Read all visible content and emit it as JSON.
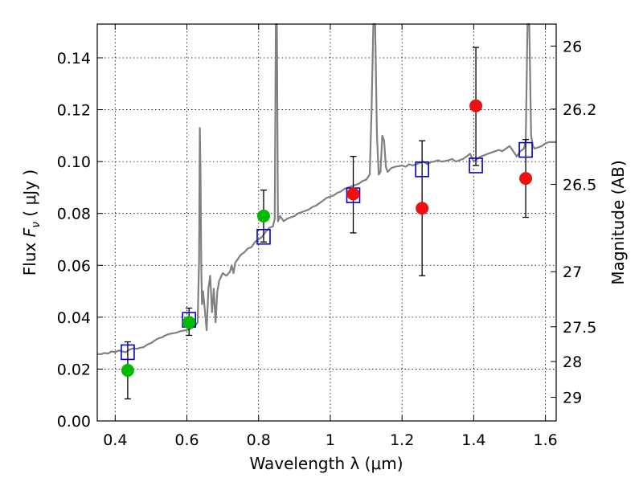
{
  "chart_data": {
    "type": "scatter",
    "title": "",
    "xlabel": "Wavelength  λ (μm)",
    "ylabel": "Flux  F_ν  ( μJy )",
    "ylabel_parts": {
      "prefix": "Flux  ",
      "symbol": "F",
      "subscript": "ν",
      "suffix": "  ( μJy )"
    },
    "y2label": "Magnitude (AB)",
    "xlim": [
      0.35,
      1.63
    ],
    "ylim": [
      0.0,
      0.153
    ],
    "grid": true,
    "x_ticks": [
      0.4,
      0.6,
      0.8,
      1.0,
      1.2,
      1.4,
      1.6
    ],
    "x_tick_labels": [
      "0.4",
      "0.6",
      "0.8",
      "1",
      "1.2",
      "1.4",
      "1.6"
    ],
    "y_ticks": [
      0.0,
      0.02,
      0.04,
      0.06,
      0.08,
      0.1,
      0.12,
      0.14
    ],
    "y_tick_labels": [
      "0.00",
      "0.02",
      "0.04",
      "0.06",
      "0.08",
      "0.10",
      "0.12",
      "0.14"
    ],
    "y2_ticks": [
      26,
      26.2,
      26.5,
      27,
      27.5,
      28,
      29
    ],
    "y2_tick_labels": [
      "26",
      "26.2",
      "26.5",
      "27",
      "27.5",
      "28",
      "29"
    ],
    "series": [
      {
        "name": "Model spectrum",
        "kind": "line",
        "color": "#808080",
        "x": [
          0.35,
          0.36,
          0.37,
          0.38,
          0.39,
          0.4,
          0.41,
          0.42,
          0.43,
          0.44,
          0.45,
          0.46,
          0.47,
          0.48,
          0.49,
          0.5,
          0.51,
          0.52,
          0.53,
          0.54,
          0.55,
          0.56,
          0.57,
          0.58,
          0.59,
          0.6,
          0.61,
          0.615,
          0.62,
          0.625,
          0.63,
          0.634,
          0.636,
          0.638,
          0.64,
          0.642,
          0.645,
          0.65,
          0.655,
          0.66,
          0.665,
          0.67,
          0.675,
          0.68,
          0.685,
          0.69,
          0.7,
          0.71,
          0.72,
          0.725,
          0.73,
          0.735,
          0.74,
          0.75,
          0.76,
          0.77,
          0.78,
          0.79,
          0.8,
          0.81,
          0.82,
          0.83,
          0.84,
          0.845,
          0.848,
          0.851,
          0.854,
          0.857,
          0.86,
          0.865,
          0.87,
          0.88,
          0.89,
          0.9,
          0.91,
          0.92,
          0.93,
          0.94,
          0.95,
          0.96,
          0.97,
          0.98,
          0.99,
          1.0,
          1.01,
          1.02,
          1.03,
          1.04,
          1.05,
          1.06,
          1.07,
          1.08,
          1.09,
          1.1,
          1.11,
          1.115,
          1.12,
          1.125,
          1.13,
          1.135,
          1.14,
          1.145,
          1.15,
          1.155,
          1.16,
          1.17,
          1.18,
          1.19,
          1.2,
          1.21,
          1.22,
          1.23,
          1.24,
          1.25,
          1.26,
          1.27,
          1.28,
          1.29,
          1.3,
          1.31,
          1.32,
          1.33,
          1.34,
          1.35,
          1.36,
          1.37,
          1.38,
          1.39,
          1.4,
          1.41,
          1.42,
          1.43,
          1.44,
          1.45,
          1.46,
          1.47,
          1.48,
          1.49,
          1.5,
          1.51,
          1.52,
          1.53,
          1.54,
          1.545,
          1.55,
          1.555,
          1.56,
          1.565,
          1.57,
          1.58,
          1.59,
          1.6,
          1.61,
          1.62,
          1.63
        ],
        "y": [
          0.0258,
          0.0257,
          0.0262,
          0.026,
          0.0268,
          0.0265,
          0.0272,
          0.0268,
          0.0265,
          0.0275,
          0.028,
          0.0278,
          0.0282,
          0.0285,
          0.0295,
          0.03,
          0.031,
          0.0318,
          0.0322,
          0.033,
          0.0335,
          0.0338,
          0.034,
          0.0345,
          0.0348,
          0.035,
          0.0355,
          0.036,
          0.0365,
          0.037,
          0.038,
          0.062,
          0.113,
          0.095,
          0.06,
          0.045,
          0.05,
          0.043,
          0.035,
          0.051,
          0.056,
          0.042,
          0.051,
          0.038,
          0.05,
          0.054,
          0.057,
          0.056,
          0.0575,
          0.06,
          0.057,
          0.061,
          0.062,
          0.064,
          0.065,
          0.0665,
          0.067,
          0.069,
          0.07,
          0.071,
          0.073,
          0.0745,
          0.075,
          0.078,
          0.153,
          0.153,
          0.077,
          0.078,
          0.079,
          0.078,
          0.077,
          0.078,
          0.0785,
          0.079,
          0.08,
          0.0805,
          0.081,
          0.0815,
          0.0825,
          0.083,
          0.084,
          0.085,
          0.086,
          0.0865,
          0.087,
          0.088,
          0.0885,
          0.0895,
          0.09,
          0.0905,
          0.091,
          0.0915,
          0.0925,
          0.093,
          0.095,
          0.12,
          0.153,
          0.153,
          0.11,
          0.095,
          0.096,
          0.11,
          0.108,
          0.098,
          0.096,
          0.0975,
          0.098,
          0.0982,
          0.0985,
          0.098,
          0.099,
          0.0985,
          0.099,
          0.0995,
          0.1,
          0.099,
          0.0998,
          0.1,
          0.1005,
          0.1,
          0.1002,
          0.1005,
          0.101,
          0.1,
          0.1005,
          0.101,
          0.102,
          0.103,
          0.1,
          0.101,
          0.102,
          0.1025,
          0.103,
          0.1035,
          0.104,
          0.1045,
          0.104,
          0.105,
          0.106,
          0.104,
          0.102,
          0.104,
          0.105,
          0.108,
          0.153,
          0.153,
          0.11,
          0.106,
          0.105,
          0.1055,
          0.106,
          0.107,
          0.1075,
          0.1075,
          0.1075
        ]
      },
      {
        "name": "Model photometry",
        "kind": "open-square",
        "color": "#0000cc",
        "x": [
          0.435,
          0.606,
          0.814,
          1.064,
          1.256,
          1.406,
          1.545
        ],
        "y": [
          0.0265,
          0.039,
          0.071,
          0.087,
          0.097,
          0.0985,
          0.1045
        ]
      },
      {
        "name": "Observed (green)",
        "kind": "filled-circle",
        "color": "#00bb00",
        "x": [
          0.435,
          0.606,
          0.814
        ],
        "y": [
          0.0195,
          0.038,
          0.079
        ],
        "err_low": [
          0.011,
          0.005,
          0.01
        ],
        "err_high": [
          0.011,
          0.0055,
          0.01
        ]
      },
      {
        "name": "Observed (red)",
        "kind": "filled-circle",
        "color": "#ee1111",
        "x": [
          1.064,
          1.256,
          1.406,
          1.545
        ],
        "y": [
          0.0875,
          0.082,
          0.1215,
          0.0935
        ],
        "err_low": [
          0.015,
          0.026,
          0.023,
          0.015
        ],
        "err_high": [
          0.0145,
          0.026,
          0.0225,
          0.015
        ]
      }
    ]
  }
}
